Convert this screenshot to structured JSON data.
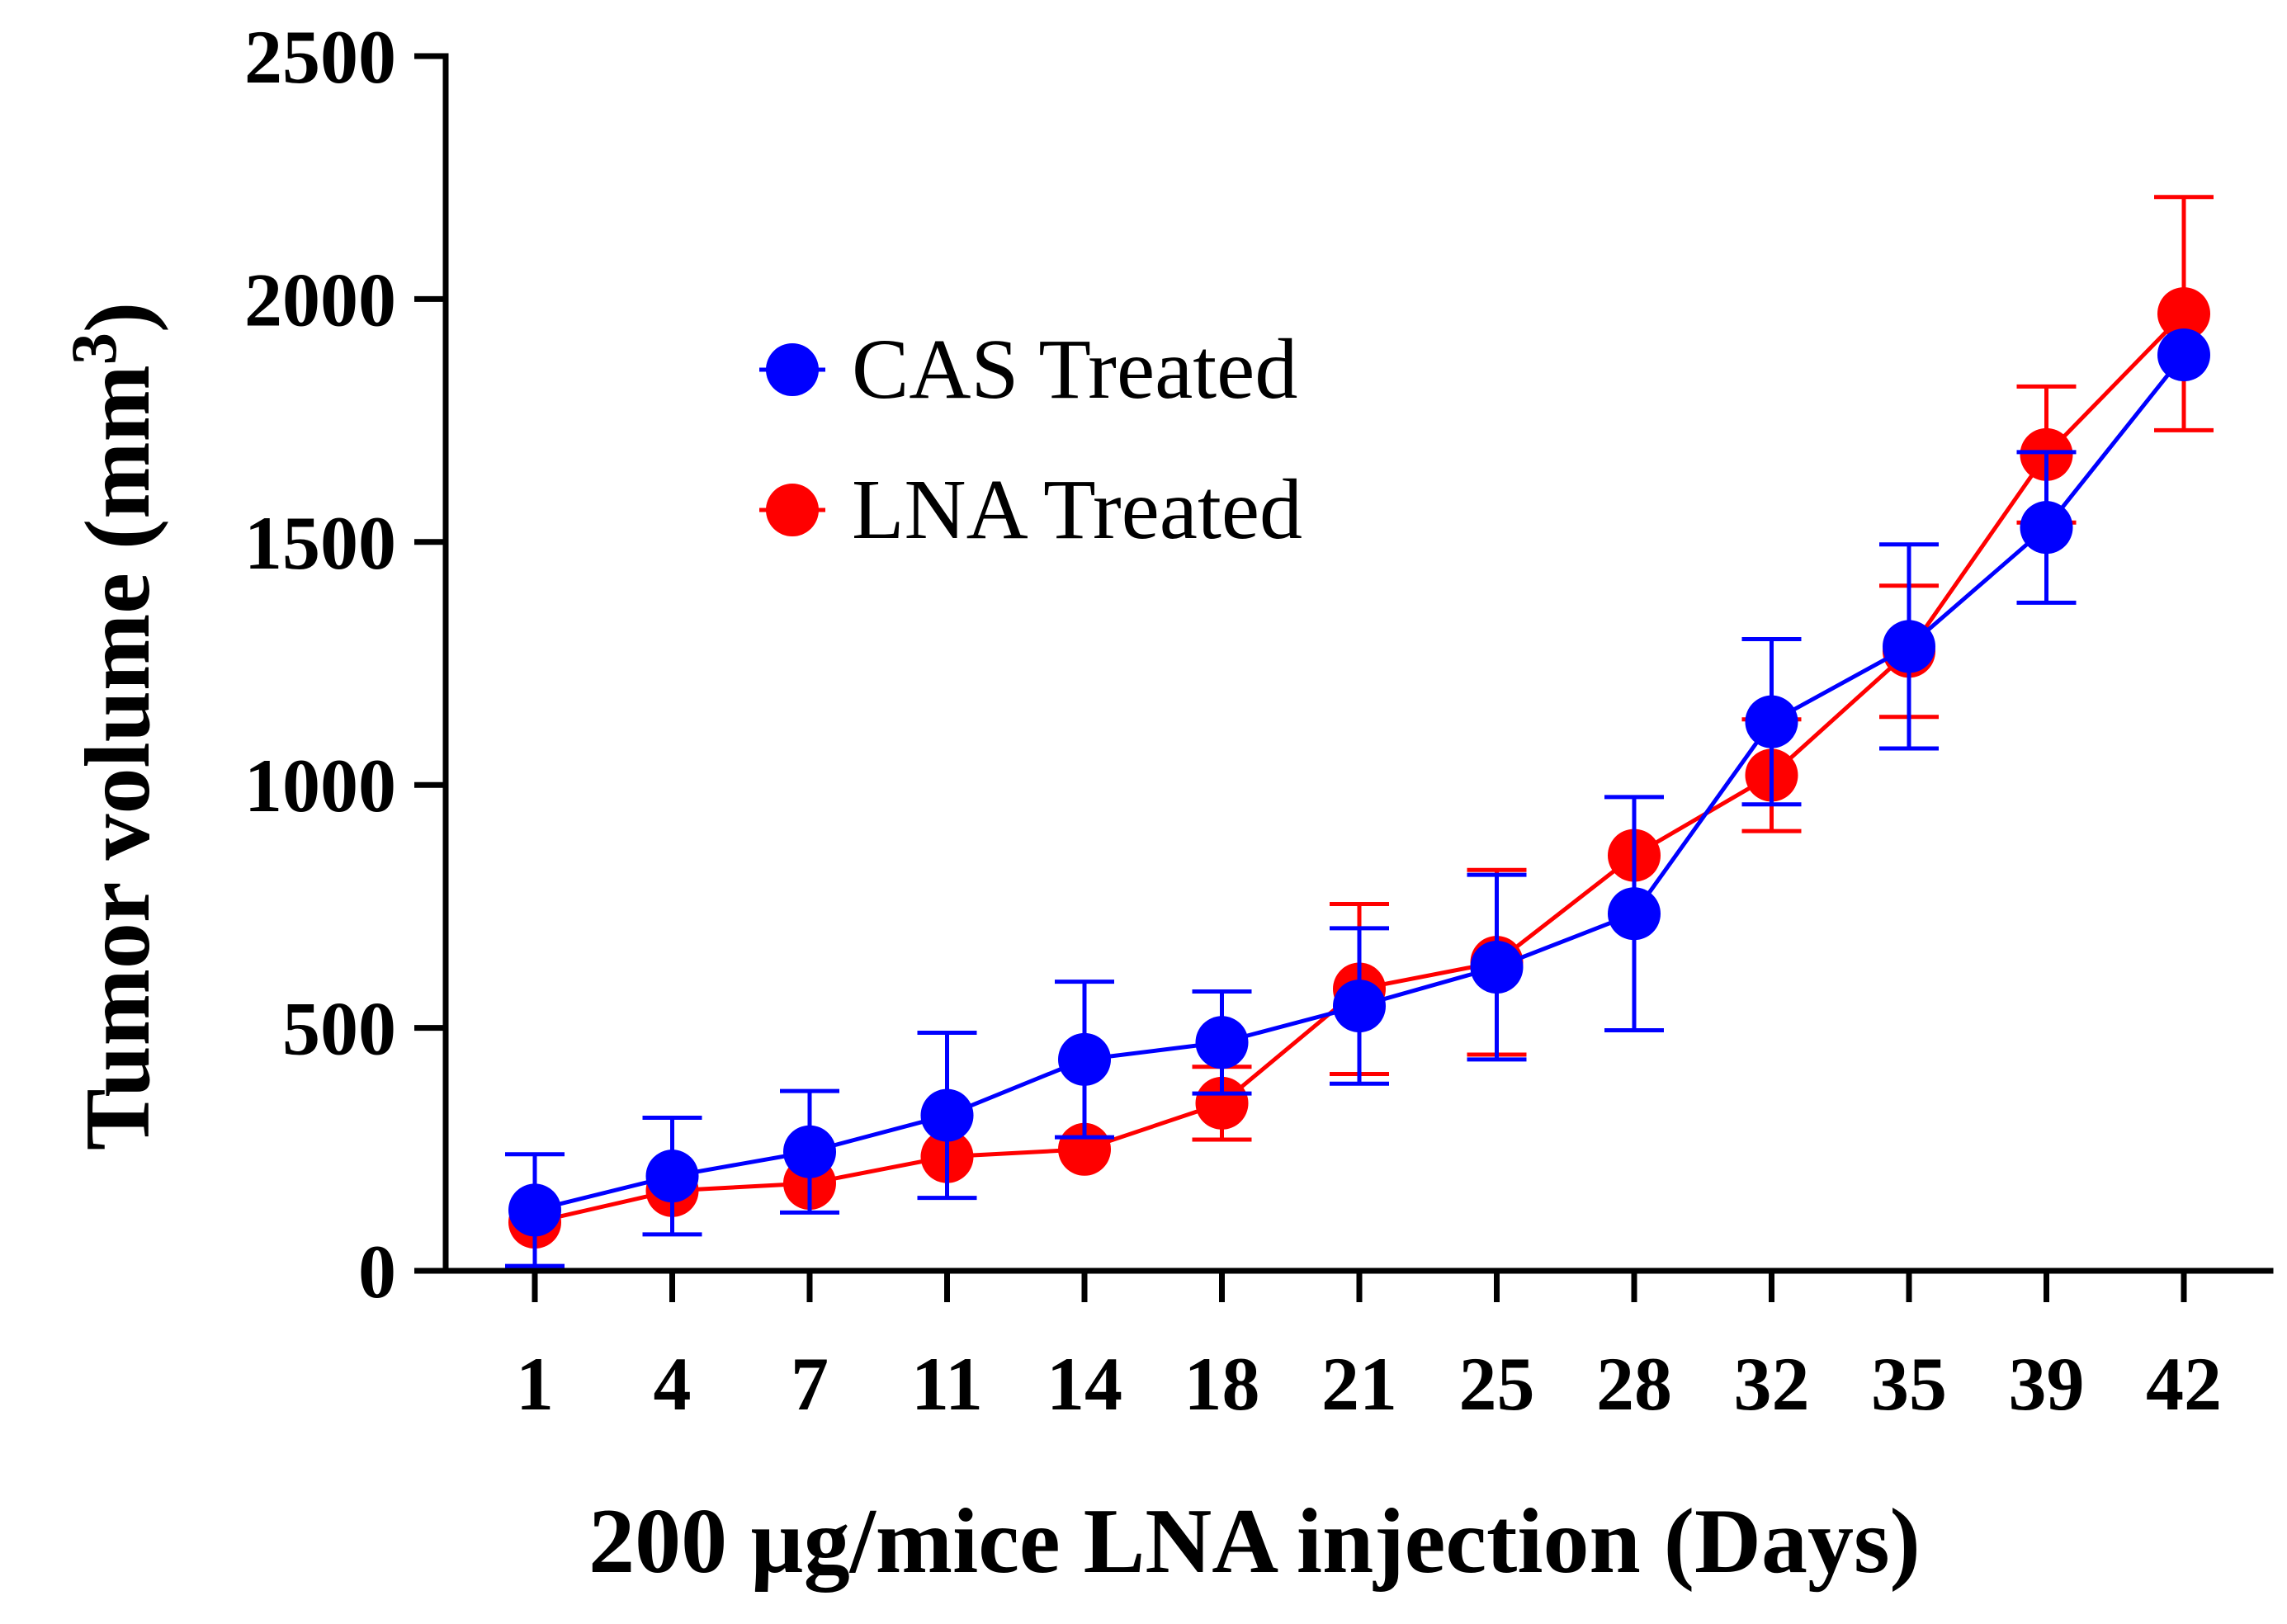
{
  "chart_data": {
    "type": "line",
    "title": "",
    "xlabel": "200 µg/mice LNA injection (Days)",
    "ylabel": "Tumor volume (mm",
    "ylabel_superscript": "3",
    "ylabel_close": ")",
    "categories": [
      "1",
      "4",
      "7",
      "11",
      "14",
      "18",
      "21",
      "25",
      "28",
      "32",
      "35",
      "39",
      "42"
    ],
    "ylim": [
      0,
      2500
    ],
    "yticks": [
      0,
      500,
      1000,
      1500,
      2000,
      2500
    ],
    "ytick_labels": [
      "0",
      "500",
      "1000",
      "1500",
      "2000",
      "2500"
    ],
    "grid": false,
    "legend_position": "upper-left",
    "series": [
      {
        "name": "LNA Treated",
        "color": "#ff0000",
        "values": [
          100,
          165,
          180,
          235,
          250,
          345,
          580,
          635,
          855,
          1020,
          1275,
          1680,
          1970
        ],
        "errors": [
          null,
          null,
          null,
          null,
          null,
          75,
          175,
          190,
          null,
          115,
          135,
          140,
          240
        ]
      },
      {
        "name": "CAS Treated",
        "color": "#0000ff",
        "values": [
          125,
          195,
          245,
          320,
          435,
          470,
          545,
          625,
          735,
          1130,
          1285,
          1530,
          1885
        ],
        "errors": [
          115,
          120,
          125,
          170,
          160,
          105,
          160,
          190,
          240,
          170,
          210,
          155,
          null
        ]
      }
    ]
  }
}
